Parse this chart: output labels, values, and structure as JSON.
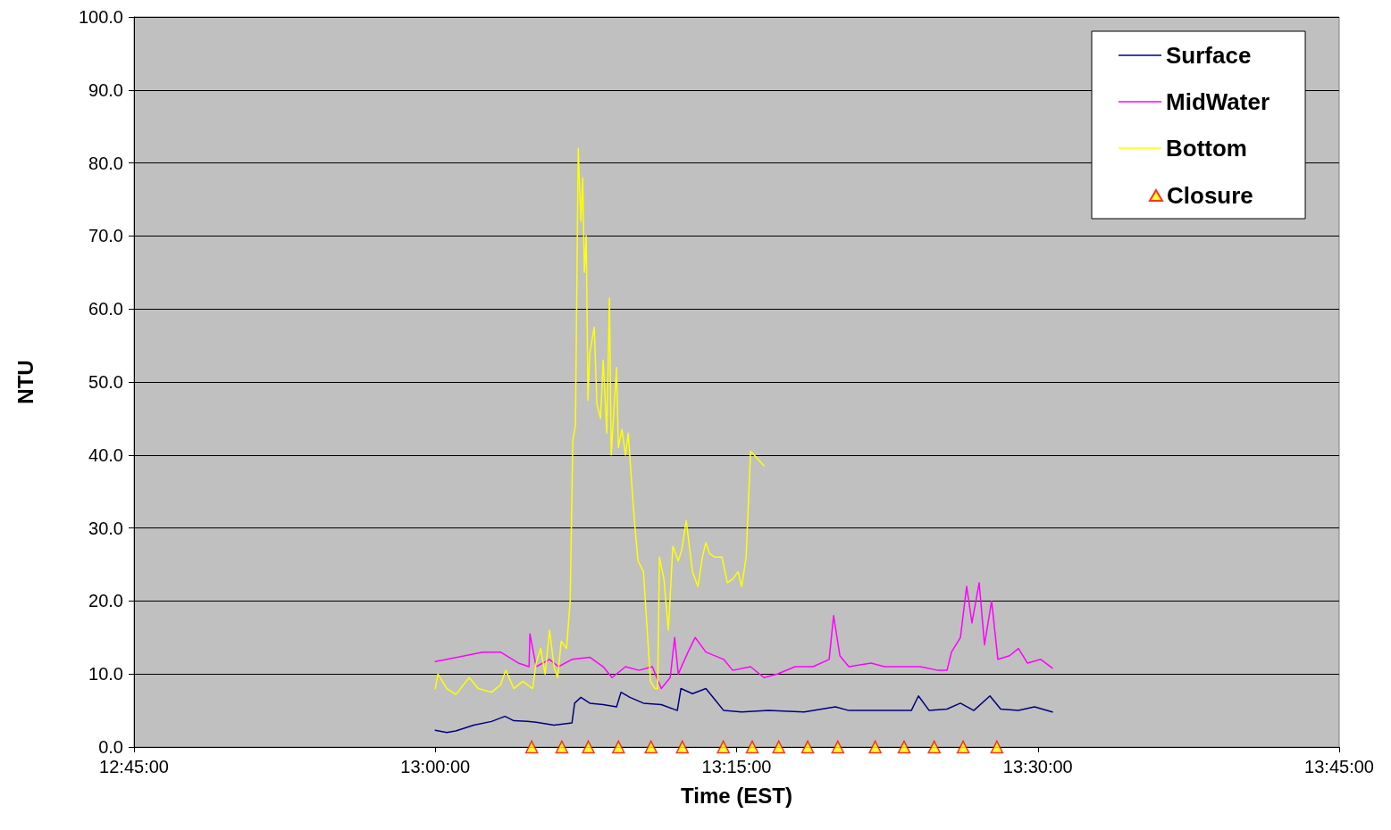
{
  "chart_data": {
    "type": "line",
    "xlabel": "Time (EST)",
    "ylabel": "NTU",
    "xlim": [
      12.75,
      13.75
    ],
    "xticks": [
      {
        "value": 12.75,
        "label": "12:45:00"
      },
      {
        "value": 13,
        "label": "13:00:00"
      },
      {
        "value": 13.25,
        "label": "13:15:00"
      },
      {
        "value": 13.5,
        "label": "13:30:00"
      },
      {
        "value": 13.75,
        "label": "13:45:00"
      }
    ],
    "ylim": [
      0,
      100
    ],
    "yticks": [
      {
        "value": 0,
        "label": "0.0"
      },
      {
        "value": 10,
        "label": "10.0"
      },
      {
        "value": 20,
        "label": "20.0"
      },
      {
        "value": 30,
        "label": "30.0"
      },
      {
        "value": 40,
        "label": "40.0"
      },
      {
        "value": 50,
        "label": "50.0"
      },
      {
        "value": 60,
        "label": "60.0"
      },
      {
        "value": 70,
        "label": "70.0"
      },
      {
        "value": 80,
        "label": "80.0"
      },
      {
        "value": 90,
        "label": "90.0"
      },
      {
        "value": 100,
        "label": "100.0"
      }
    ],
    "grid": "y",
    "legend": "top right",
    "line_style": "solid",
    "series": [
      {
        "name": "Surface",
        "color": "#000080",
        "marker": "none",
        "x": [
          13.0,
          13.0096,
          13.017,
          13.0319,
          13.0467,
          13.0578,
          13.0652,
          13.0763,
          13.0837,
          13.0985,
          13.1134,
          13.1156,
          13.1208,
          13.1282,
          13.1393,
          13.1504,
          13.1541,
          13.1615,
          13.1727,
          13.1875,
          13.2008,
          13.2038,
          13.2134,
          13.2245,
          13.2319,
          13.2393,
          13.2542,
          13.2764,
          13.306,
          13.332,
          13.3431,
          13.3653,
          13.395,
          13.4009,
          13.4098,
          13.4246,
          13.4357,
          13.4468,
          13.4602,
          13.4691,
          13.4839,
          13.4972,
          13.512
        ],
        "values": [
          2.3,
          2.0,
          2.2,
          3.0,
          3.5,
          4.2,
          3.6,
          3.5,
          3.4,
          3.0,
          3.3,
          6.0,
          6.8,
          6.0,
          5.8,
          5.5,
          7.5,
          6.8,
          6.0,
          5.8,
          5.0,
          8.0,
          7.3,
          8.0,
          6.5,
          5.0,
          4.8,
          5.0,
          4.8,
          5.5,
          5.0,
          5.0,
          5.0,
          7.0,
          5.0,
          5.2,
          6.0,
          5.0,
          7.0,
          5.2,
          5.0,
          5.5,
          4.8
        ]
      },
      {
        "name": "MidWater",
        "color": "#ff00ff",
        "marker": "none",
        "x": [
          13.0,
          13.0096,
          13.0245,
          13.0393,
          13.0541,
          13.0689,
          13.0778,
          13.0785,
          13.0837,
          13.0948,
          13.1022,
          13.1134,
          13.1282,
          13.1393,
          13.1467,
          13.1578,
          13.169,
          13.1801,
          13.1875,
          13.1949,
          13.1986,
          13.2016,
          13.2097,
          13.2156,
          13.2245,
          13.2393,
          13.2468,
          13.2616,
          13.2727,
          13.2838,
          13.2986,
          13.3134,
          13.3268,
          13.3305,
          13.3357,
          13.3431,
          13.3616,
          13.3727,
          13.3875,
          13.4024,
          13.4172,
          13.4246,
          13.4283,
          13.4357,
          13.4409,
          13.4453,
          13.4513,
          13.4557,
          13.4616,
          13.4668,
          13.4765,
          13.4839,
          13.4913,
          13.5024,
          13.512
        ],
        "values": [
          11.7,
          12.0,
          12.5,
          13.0,
          13.0,
          11.5,
          11.0,
          15.5,
          11.0,
          12.0,
          11.0,
          12.0,
          12.3,
          11.0,
          9.5,
          11.0,
          10.5,
          11.0,
          8.0,
          9.5,
          15.0,
          10.0,
          13.0,
          15.0,
          13.0,
          12.0,
          10.5,
          11.0,
          9.5,
          10.0,
          11.0,
          11.0,
          12.0,
          18.0,
          12.5,
          11.0,
          11.5,
          11.0,
          11.0,
          11.0,
          10.5,
          10.5,
          13.0,
          15.0,
          22.0,
          17.0,
          22.5,
          14.0,
          20.0,
          12.0,
          12.5,
          13.5,
          11.5,
          12.0,
          10.8
        ]
      },
      {
        "name": "Bottom",
        "color": "#ffff00",
        "marker": "none",
        "x": [
          13.0,
          13.0022,
          13.0096,
          13.017,
          13.0282,
          13.0356,
          13.0467,
          13.0541,
          13.0585,
          13.0652,
          13.0726,
          13.0808,
          13.0837,
          13.0874,
          13.0911,
          13.0948,
          13.0985,
          13.1015,
          13.1045,
          13.1089,
          13.1119,
          13.1141,
          13.1163,
          13.1186,
          13.1208,
          13.1223,
          13.1237,
          13.1252,
          13.1267,
          13.1282,
          13.1319,
          13.1341,
          13.1371,
          13.1393,
          13.1423,
          13.1445,
          13.146,
          13.1489,
          13.1504,
          13.1519,
          13.1549,
          13.1578,
          13.1601,
          13.163,
          13.1652,
          13.1682,
          13.1727,
          13.1786,
          13.1823,
          13.1845,
          13.186,
          13.1897,
          13.1934,
          13.1971,
          13.2016,
          13.2045,
          13.2082,
          13.2134,
          13.2179,
          13.2216,
          13.2245,
          13.2275,
          13.2319,
          13.2379,
          13.2423,
          13.2468,
          13.2512,
          13.2542,
          13.2579,
          13.2616,
          13.2645,
          13.2727
        ],
        "values": [
          8.0,
          10.0,
          8.0,
          7.2,
          9.5,
          8.0,
          7.5,
          8.5,
          10.5,
          8.0,
          9.0,
          8.0,
          11.5,
          13.5,
          10.0,
          16.0,
          11.0,
          9.5,
          14.5,
          13.5,
          20.0,
          42.0,
          44.0,
          82.0,
          72.0,
          78.0,
          65.0,
          70.0,
          47.5,
          54.0,
          57.5,
          47.0,
          45.0,
          53.0,
          43.0,
          61.5,
          40.0,
          48.0,
          52.0,
          41.0,
          43.5,
          40.0,
          43.0,
          36.0,
          31.0,
          25.5,
          24.0,
          9.0,
          8.0,
          8.0,
          26.0,
          23.0,
          16.0,
          27.5,
          25.5,
          27.0,
          31.0,
          24.0,
          22.0,
          26.0,
          28.0,
          26.5,
          26.0,
          26.0,
          22.5,
          23.0,
          24.0,
          22.0,
          26.0,
          40.5,
          40.0,
          38.5
        ]
      },
      {
        "name": "Closure",
        "type": "scatter",
        "color": "#ffff00",
        "marker": "triangle",
        "x": [
          13.08,
          13.105,
          13.127,
          13.152,
          13.179,
          13.205,
          13.239,
          13.263,
          13.285,
          13.309,
          13.334,
          13.365,
          13.389,
          13.414,
          13.438,
          13.466
        ],
        "values": [
          0,
          0,
          0,
          0,
          0,
          0,
          0,
          0,
          0,
          0,
          0,
          0,
          0,
          0,
          0,
          0
        ]
      }
    ]
  }
}
